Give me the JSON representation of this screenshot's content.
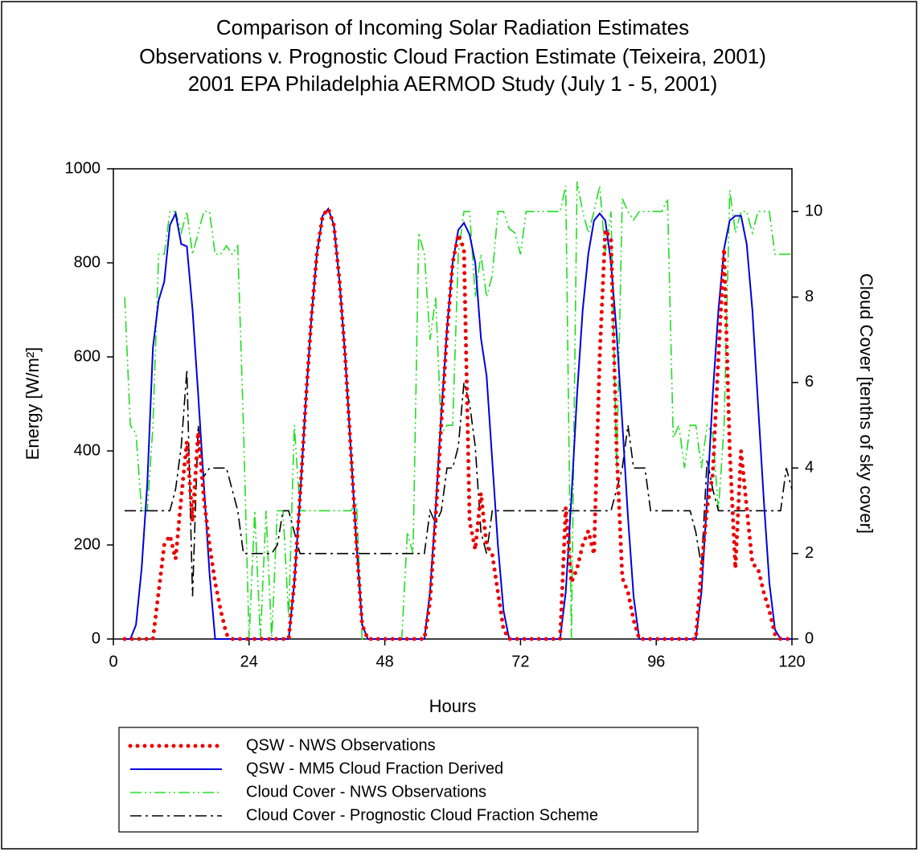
{
  "chart_data": {
    "type": "line",
    "title": [
      "Comparison of Incoming Solar Radiation Estimates",
      "Observations v. Prognostic Cloud Fraction Estimate (Teixeira, 2001)",
      "2001 EPA Philadelphia AERMOD Study (July 1 - 5, 2001)"
    ],
    "xlabel": "Hours",
    "ylabel": "Energy [W/m²]",
    "y2label": "Cloud Cover [tenths of sky cover]",
    "xlim": [
      0,
      120
    ],
    "xticks": [
      0,
      24,
      48,
      72,
      96,
      120
    ],
    "ylim": [
      0,
      1000
    ],
    "yticks": [
      0,
      200,
      400,
      600,
      800,
      1000
    ],
    "y2lim": [
      0,
      11
    ],
    "y2ticks": [
      0,
      2,
      4,
      6,
      8,
      10
    ],
    "legend": "below",
    "x": [
      2,
      3,
      4,
      5,
      6,
      7,
      8,
      9,
      10,
      11,
      12,
      13,
      14,
      15,
      16,
      17,
      18,
      19,
      20,
      21,
      22,
      23,
      24,
      25,
      26,
      27,
      28,
      29,
      30,
      31,
      32,
      33,
      34,
      35,
      36,
      37,
      38,
      39,
      40,
      41,
      42,
      43,
      44,
      45,
      46,
      47,
      48,
      49,
      50,
      51,
      52,
      53,
      54,
      55,
      56,
      57,
      58,
      59,
      60,
      61,
      62,
      63,
      64,
      65,
      66,
      67,
      68,
      69,
      70,
      71,
      72,
      73,
      74,
      75,
      76,
      77,
      78,
      79,
      80,
      81,
      82,
      83,
      84,
      85,
      86,
      87,
      88,
      89,
      90,
      91,
      92,
      93,
      94,
      95,
      96,
      97,
      98,
      99,
      100,
      101,
      102,
      103,
      104,
      105,
      106,
      107,
      108,
      109,
      110,
      111,
      112,
      113,
      114,
      115,
      116,
      117,
      118,
      119,
      120
    ],
    "series": [
      {
        "name": "QSW - NWS Observations",
        "color": "#ee0000",
        "style": "dotted",
        "values": [
          0,
          0,
          0,
          0,
          0,
          0,
          100,
          200,
          220,
          170,
          300,
          420,
          250,
          440,
          300,
          200,
          120,
          60,
          10,
          0,
          0,
          0,
          0,
          0,
          0,
          0,
          0,
          0,
          0,
          0,
          120,
          300,
          500,
          680,
          820,
          900,
          915,
          880,
          760,
          600,
          400,
          200,
          30,
          0,
          0,
          0,
          0,
          0,
          0,
          0,
          0,
          0,
          0,
          0,
          80,
          260,
          460,
          650,
          800,
          860,
          830,
          250,
          190,
          310,
          200,
          180,
          100,
          20,
          0,
          0,
          0,
          0,
          0,
          0,
          0,
          0,
          0,
          0,
          280,
          120,
          150,
          200,
          230,
          180,
          600,
          870,
          850,
          400,
          130,
          100,
          40,
          0,
          0,
          0,
          0,
          0,
          0,
          0,
          0,
          0,
          0,
          0,
          150,
          280,
          350,
          600,
          830,
          400,
          150,
          400,
          280,
          160,
          150,
          100,
          60,
          10,
          0,
          0,
          0
        ]
      },
      {
        "name": "QSW - MM5 Cloud Fraction Derived",
        "color": "#0000dd",
        "style": "solid",
        "values": [
          0,
          0,
          30,
          150,
          330,
          620,
          720,
          760,
          880,
          905,
          840,
          835,
          700,
          520,
          330,
          140,
          0,
          0,
          0,
          0,
          0,
          0,
          0,
          0,
          0,
          0,
          0,
          0,
          0,
          0,
          120,
          300,
          500,
          680,
          820,
          900,
          915,
          880,
          760,
          600,
          400,
          200,
          30,
          0,
          0,
          0,
          0,
          0,
          0,
          0,
          0,
          0,
          0,
          0,
          100,
          280,
          480,
          660,
          800,
          870,
          885,
          860,
          800,
          640,
          560,
          380,
          200,
          60,
          0,
          0,
          0,
          0,
          0,
          0,
          0,
          0,
          0,
          0,
          100,
          300,
          520,
          700,
          820,
          890,
          905,
          890,
          800,
          650,
          460,
          260,
          90,
          0,
          0,
          0,
          0,
          0,
          0,
          0,
          0,
          0,
          0,
          0,
          100,
          300,
          520,
          700,
          830,
          890,
          900,
          900,
          840,
          700,
          500,
          300,
          120,
          20,
          0,
          0,
          0
        ]
      },
      {
        "name": "Cloud Cover - NWS Observations",
        "color": "#22dd22",
        "style": "dashdotdot",
        "axis": "y2",
        "values": [
          8,
          5,
          4.8,
          3,
          3,
          5,
          9,
          9,
          10,
          10,
          9.5,
          10,
          9,
          9.5,
          10,
          10,
          9,
          9,
          9.2,
          9,
          9.2,
          5,
          0,
          3,
          0,
          3,
          0,
          3,
          3,
          0.5,
          5,
          3,
          3,
          3,
          3,
          3,
          3,
          3,
          3,
          3,
          3,
          3.2,
          0,
          0,
          0,
          0,
          0,
          0,
          0,
          0,
          2.5,
          2,
          9.5,
          9,
          7,
          8,
          4.8,
          5,
          5,
          9,
          10,
          10,
          8,
          9,
          8,
          8.5,
          10,
          10,
          9.6,
          9.5,
          9,
          10,
          10,
          10,
          10,
          10,
          10,
          10,
          10.6,
          0,
          10.7,
          10,
          9.5,
          10,
          10.6,
          9,
          10,
          4,
          10.3,
          10,
          9.8,
          10,
          10,
          10,
          10,
          10,
          10.3,
          4.7,
          5,
          4,
          5,
          5,
          4,
          5,
          4.8,
          3,
          5,
          10.5,
          9.5,
          10,
          10,
          9.5,
          10,
          10,
          10,
          9,
          9,
          9,
          9
        ]
      },
      {
        "name": "Cloud Cover - Prognostic Cloud Fraction Scheme",
        "color": "#000000",
        "style": "dashdot",
        "axis": "y2",
        "values": [
          3,
          3,
          3,
          3,
          3,
          3,
          3,
          3,
          3,
          3.5,
          4.5,
          6.3,
          1,
          5,
          3.8,
          4,
          4,
          4,
          4,
          3.5,
          3,
          2,
          2,
          2,
          2,
          2,
          2,
          2.2,
          3,
          3,
          2.5,
          2,
          2,
          2,
          2,
          2,
          2,
          2,
          2,
          2,
          2,
          2,
          2,
          2,
          2,
          2,
          2,
          2,
          2,
          2,
          2,
          2,
          2,
          2,
          3,
          2.7,
          3,
          4,
          4,
          4.5,
          6,
          5.5,
          4.5,
          2.5,
          2,
          3,
          3,
          3,
          3,
          3,
          3,
          3,
          3,
          3,
          3,
          3,
          3,
          3,
          3,
          3,
          3,
          3,
          3,
          3,
          3,
          3,
          3,
          3.5,
          4,
          5,
          4,
          4,
          4,
          3,
          3,
          3,
          3,
          3,
          3,
          3,
          3,
          2.5,
          1.7,
          4.2,
          3.5,
          3,
          3,
          3,
          3,
          3,
          3,
          3,
          3,
          3,
          3,
          3,
          3,
          4,
          3.5
        ]
      }
    ]
  }
}
